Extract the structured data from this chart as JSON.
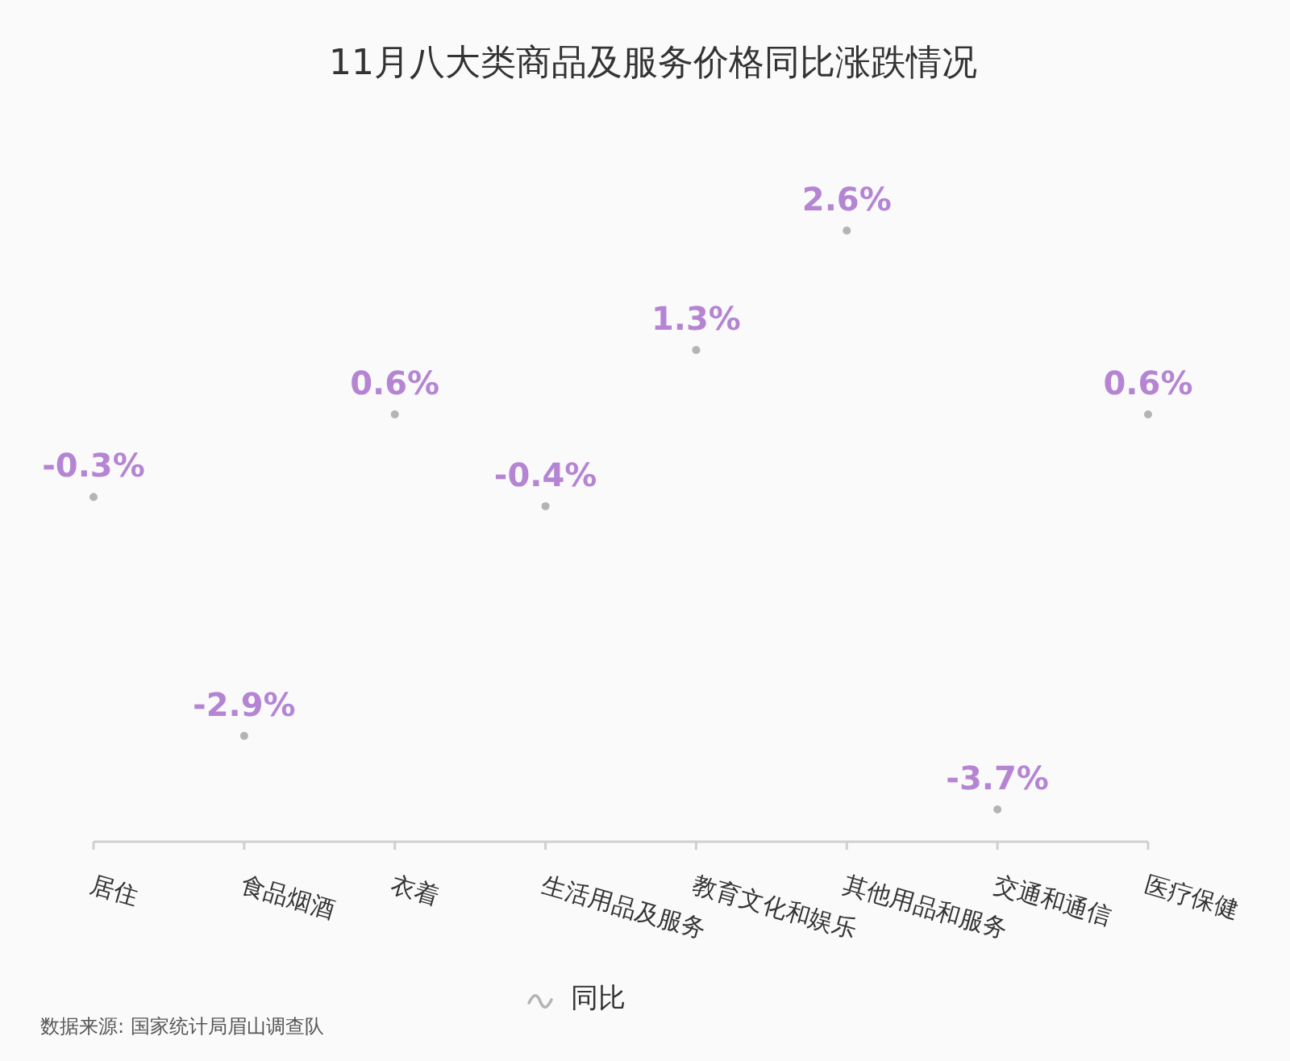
{
  "chart_data": {
    "type": "scatter",
    "title": "11月八大类商品及服务价格同比涨跌情况",
    "categories": [
      "居住",
      "食品烟酒",
      "衣着",
      "生活用品及服务",
      "教育文化和娱乐",
      "其他用品和服务",
      "交通和通信",
      "医疗保健"
    ],
    "series": [
      {
        "name": "同比",
        "color": "#b4b4b4",
        "values": [
          -0.3,
          -2.9,
          0.6,
          -0.4,
          1.3,
          2.6,
          -3.7,
          0.6
        ],
        "value_labels": [
          "-0.3%",
          "-2.9%",
          "0.6%",
          "-0.4%",
          "1.3%",
          "2.6%",
          "-3.7%",
          "0.6%"
        ]
      }
    ],
    "marker": "circle",
    "legend": "bottom",
    "tick_labels": "x",
    "annotations": [
      "数据来源: 国家统计局眉山调查队"
    ]
  }
}
